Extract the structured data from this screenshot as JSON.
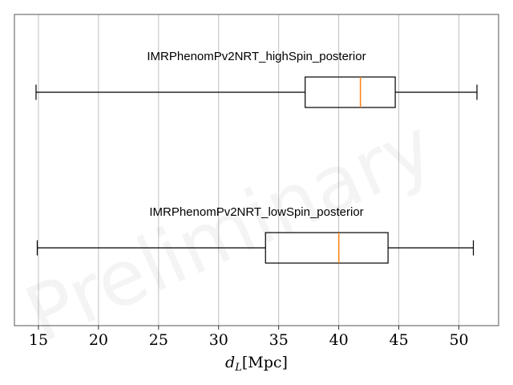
{
  "chart_data": {
    "type": "boxplot",
    "orientation": "horizontal",
    "xlabel": "d_L[Mpc]",
    "xlim": [
      13.0,
      53.3
    ],
    "xticks": [
      15,
      20,
      25,
      30,
      35,
      40,
      45,
      50
    ],
    "tick_labels": [
      "15",
      "20",
      "25",
      "30",
      "35",
      "40",
      "45",
      "50"
    ],
    "grid": "vertical",
    "watermark": "Preliminary",
    "series": [
      {
        "name": "IMRPhenomPv2NRT_highSpin_posterior",
        "whisker_low": 14.8,
        "q1": 37.2,
        "median": 41.8,
        "q3": 44.7,
        "whisker_high": 51.5
      },
      {
        "name": "IMRPhenomPv2NRT_lowSpin_posterior",
        "whisker_low": 14.9,
        "q1": 33.9,
        "median": 40.0,
        "q3": 44.1,
        "whisker_high": 51.2
      }
    ],
    "colors": {
      "box": "#000000",
      "median": "#ff7f0e",
      "grid": "#b0b0b0",
      "frame": "#555555"
    }
  }
}
